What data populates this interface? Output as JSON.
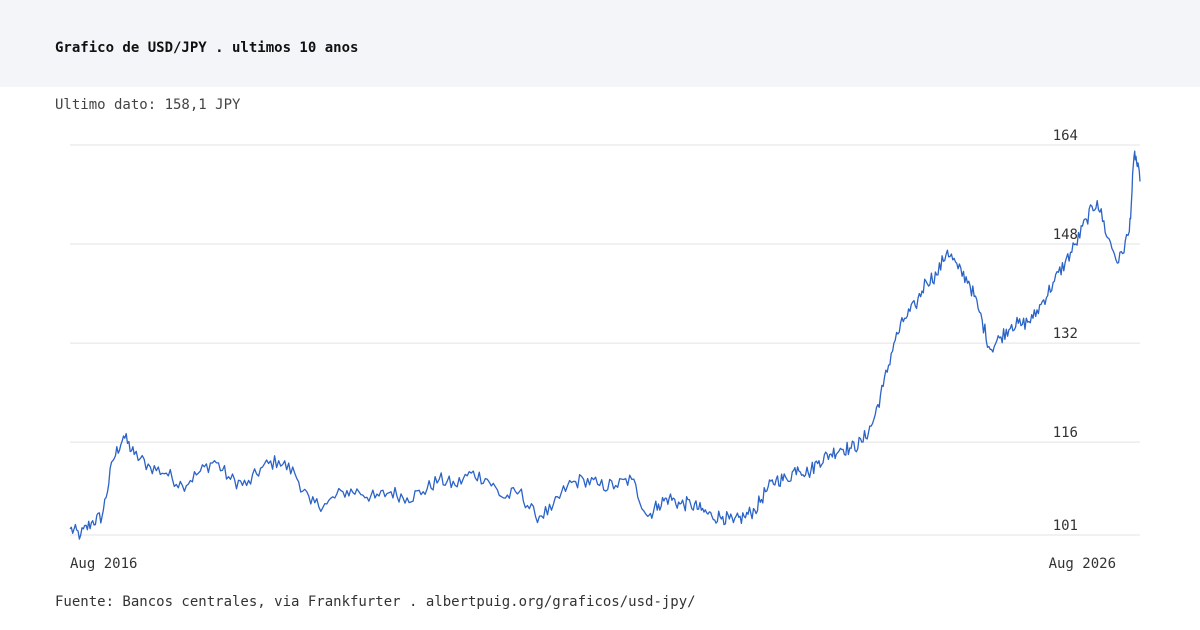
{
  "header": {
    "title": "Grafico de USD/JPY . ultimos 10 anos"
  },
  "subtitle": "Ultimo dato: 158,1 JPY",
  "footer": {
    "source": "Fuente: Bancos centrales, via Frankfurter . albertpuig.org/graficos/usd-jpy/"
  },
  "colors": {
    "line": "#2b63c6",
    "grid": "#e3e3e3",
    "header_bg": "#f4f5f8"
  },
  "chart_data": {
    "type": "line",
    "title": "Grafico de USD/JPY . ultimos 10 anos",
    "ylim": [
      101,
      164
    ],
    "y_ticks": [
      {
        "value": 164,
        "label": "164"
      },
      {
        "value": 148,
        "label": "148"
      },
      {
        "value": 132,
        "label": "132"
      },
      {
        "value": 116,
        "label": "116"
      },
      {
        "value": 101,
        "label": "101"
      }
    ],
    "x_tick_labels": [
      "Aug 2016",
      "Aug 2026"
    ],
    "xlim": [
      2016.6,
      2026.6
    ],
    "grid": true,
    "series": [
      {
        "values_x": [
          2016.6,
          2016.7,
          2016.8,
          2016.9,
          2017.0,
          2017.1,
          2017.2,
          2017.35,
          2017.5,
          2017.65,
          2017.8,
          2017.95,
          2018.1,
          2018.25,
          2018.4,
          2018.55,
          2018.7,
          2018.85,
          2019.0,
          2019.15,
          2019.3,
          2019.45,
          2019.6,
          2019.75,
          2019.9,
          2020.05,
          2020.2,
          2020.35,
          2020.5,
          2020.65,
          2020.8,
          2020.95,
          2021.1,
          2021.25,
          2021.4,
          2021.55,
          2021.7,
          2021.85,
          2022.0,
          2022.1,
          2022.2,
          2022.3,
          2022.4,
          2022.5,
          2022.6,
          2022.7,
          2022.8,
          2022.9,
          2023.0,
          2023.1,
          2023.2,
          2023.3,
          2023.4,
          2023.5,
          2023.6,
          2023.7,
          2023.8,
          2023.9,
          2024.0,
          2024.1,
          2024.2,
          2024.3,
          2024.4,
          2024.5,
          2024.6,
          2024.7,
          2024.8,
          2024.9,
          2025.0,
          2025.1,
          2025.2,
          2025.3,
          2025.4,
          2025.5,
          2025.6,
          2025.7,
          2025.8,
          2025.9,
          2026.0,
          2026.1,
          2026.2,
          2026.3,
          2026.4,
          2026.5,
          2026.55,
          2026.6
        ],
        "values_y": [
          102,
          101,
          103,
          104,
          113,
          117,
          114,
          112,
          111,
          109,
          111,
          113,
          110,
          109,
          112,
          113,
          111,
          106,
          106,
          108,
          108,
          107,
          108,
          107,
          108,
          110,
          109,
          111,
          110,
          107,
          108,
          104,
          105,
          109,
          110,
          109,
          109,
          110,
          104,
          106,
          107,
          106,
          106,
          105,
          104,
          104,
          103,
          104,
          105,
          108,
          110,
          110,
          112,
          111,
          113,
          114,
          115,
          115,
          116,
          119,
          125,
          132,
          136,
          138,
          142,
          143,
          147,
          144,
          142,
          137,
          131,
          133,
          135,
          135,
          136,
          139,
          142,
          145,
          148,
          152,
          155,
          149,
          145,
          150,
          163,
          158.1
        ],
        "name": ""
      }
    ]
  }
}
